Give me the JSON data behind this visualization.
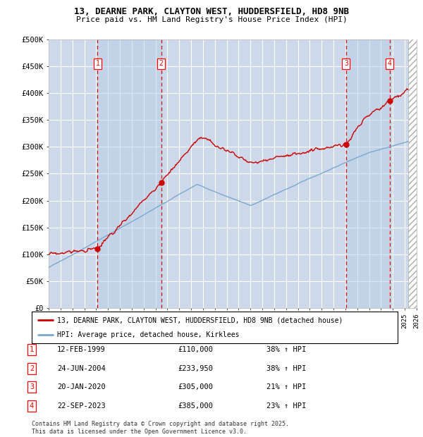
{
  "title_line1": "13, DEARNE PARK, CLAYTON WEST, HUDDERSFIELD, HD8 9NB",
  "title_line2": "Price paid vs. HM Land Registry's House Price Index (HPI)",
  "ylim": [
    0,
    500000
  ],
  "yticks": [
    0,
    50000,
    100000,
    150000,
    200000,
    250000,
    300000,
    350000,
    400000,
    450000,
    500000
  ],
  "ytick_labels": [
    "£0",
    "£50K",
    "£100K",
    "£150K",
    "£200K",
    "£250K",
    "£300K",
    "£350K",
    "£400K",
    "£450K",
    "£500K"
  ],
  "background_color": "#cdd9ea",
  "figure_color": "#ffffff",
  "grid_color": "#ffffff",
  "red_line_color": "#cc0000",
  "blue_line_color": "#7aa8d0",
  "sale_dates": [
    1999.12,
    2004.48,
    2020.05,
    2023.73
  ],
  "sale_prices": [
    110000,
    233950,
    305000,
    385000
  ],
  "sale_labels": [
    "1",
    "2",
    "3",
    "4"
  ],
  "vline_color": "#dd0000",
  "legend_items": [
    "13, DEARNE PARK, CLAYTON WEST, HUDDERSFIELD, HD8 9NB (detached house)",
    "HPI: Average price, detached house, Kirklees"
  ],
  "table_rows": [
    [
      "1",
      "12-FEB-1999",
      "£110,000",
      "38% ↑ HPI"
    ],
    [
      "2",
      "24-JUN-2004",
      "£233,950",
      "38% ↑ HPI"
    ],
    [
      "3",
      "20-JAN-2020",
      "£305,000",
      "21% ↑ HPI"
    ],
    [
      "4",
      "22-SEP-2023",
      "£385,000",
      "23% ↑ HPI"
    ]
  ],
  "footer": "Contains HM Land Registry data © Crown copyright and database right 2025.\nThis data is licensed under the Open Government Licence v3.0.",
  "xmin": 1995,
  "xmax": 2026
}
